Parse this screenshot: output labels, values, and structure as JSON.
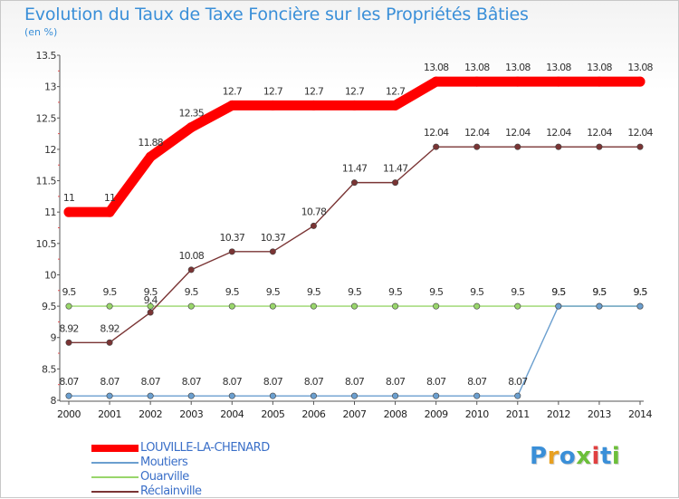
{
  "title": "Evolution du Taux de Taxe Foncière sur les Propriétés Bâties",
  "subtitle": "(en %)",
  "logo": {
    "text": "Proxiti",
    "colors": [
      "#3a8fd8",
      "#e8a020",
      "#3a8fd8",
      "#6cbf3a",
      "#e04040",
      "#3a8fd8",
      "#6cbf3a"
    ]
  },
  "chart_data": {
    "type": "line",
    "title": "Evolution du Taux de Taxe Foncière sur les Propriétés Bâties",
    "ylabel": "(en %)",
    "xlabel": "",
    "ylim": [
      8,
      13.5
    ],
    "yticks": [
      "8",
      "8.5",
      "9",
      "9.5",
      "10",
      "10.5",
      "11",
      "11.5",
      "12",
      "12.5",
      "13",
      "13.5"
    ],
    "x": [
      "2000",
      "2001",
      "2002",
      "2003",
      "2004",
      "2005",
      "2006",
      "2007",
      "2008",
      "2009",
      "2010",
      "2011",
      "2012",
      "2013",
      "2014"
    ],
    "grid": false,
    "legend_position": "bottom-left",
    "series": [
      {
        "name": "LOUVILLE-LA-CHENARD",
        "color": "#ff0000",
        "values": [
          11,
          11,
          11.88,
          12.35,
          12.7,
          12.7,
          12.7,
          12.7,
          12.7,
          13.08,
          13.08,
          13.08,
          13.08,
          13.08,
          13.08
        ],
        "labels": [
          "11",
          "11",
          "11.88",
          "12.35",
          "12.7",
          "12.7",
          "12.7",
          "12.7",
          "12.7",
          "13.08",
          "13.08",
          "13.08",
          "13.08",
          "13.08",
          "13.08"
        ]
      },
      {
        "name": "Moutiers",
        "color": "#6b9fcf",
        "values": [
          8.07,
          8.07,
          8.07,
          8.07,
          8.07,
          8.07,
          8.07,
          8.07,
          8.07,
          8.07,
          8.07,
          8.07,
          9.5,
          9.5,
          9.5
        ],
        "labels": [
          "8.07",
          "8.07",
          "8.07",
          "8.07",
          "8.07",
          "8.07",
          "8.07",
          "8.07",
          "8.07",
          "8.07",
          "8.07",
          "8.07",
          "9.5",
          "9.5",
          "9.5"
        ]
      },
      {
        "name": "Ouarville",
        "color": "#99d66b",
        "values": [
          9.5,
          9.5,
          9.5,
          9.5,
          9.5,
          9.5,
          9.5,
          9.5,
          9.5,
          9.5,
          9.5,
          9.5,
          9.5,
          9.5,
          9.5
        ],
        "labels": [
          "9.5",
          "9.5",
          "9.5",
          "9.5",
          "9.5",
          "9.5",
          "9.5",
          "9.5",
          "9.5",
          "9.5",
          "9.5",
          "9.5",
          "9.5",
          "9.5",
          "9.5"
        ]
      },
      {
        "name": "Réclainville",
        "color": "#7a3434",
        "values": [
          8.92,
          8.92,
          9.4,
          10.08,
          10.37,
          10.37,
          10.78,
          11.47,
          11.47,
          12.04,
          12.04,
          12.04,
          12.04,
          12.04,
          12.04
        ],
        "labels": [
          "8.92",
          "8.92",
          "9.4",
          "10.08",
          "10.37",
          "10.37",
          "10.78",
          "11.47",
          "11.47",
          "12.04",
          "12.04",
          "12.04",
          "12.04",
          "12.04",
          "12.04"
        ]
      }
    ]
  }
}
